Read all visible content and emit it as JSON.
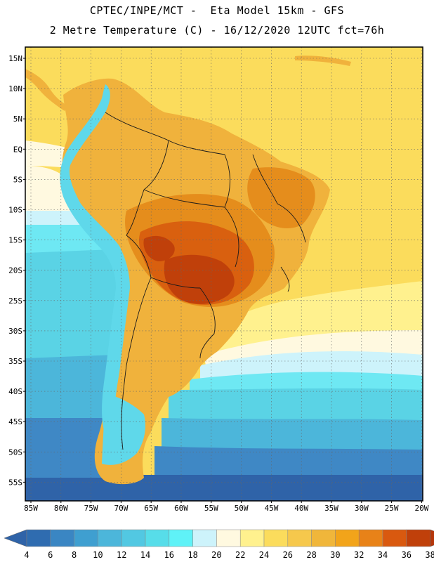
{
  "header": {
    "line1": "CPTEC/INPE/MCT -  Eta Model 15km - GFS",
    "line2": "2 Metre Temperature (C) - 16/12/2020 12UTC fct=76h"
  },
  "lat_labels": [
    "15N",
    "10N",
    "5N",
    "EQ",
    "5S",
    "10S",
    "15S",
    "20S",
    "25S",
    "30S",
    "35S",
    "40S",
    "45S",
    "50S",
    "55S"
  ],
  "lon_labels": [
    "85W",
    "80W",
    "75W",
    "70W",
    "65W",
    "60W",
    "55W",
    "50W",
    "45W",
    "40W",
    "35W",
    "30W",
    "25W",
    "20W"
  ],
  "colorbar": {
    "ticks": [
      "4",
      "6",
      "8",
      "10",
      "12",
      "14",
      "16",
      "18",
      "20",
      "22",
      "24",
      "26",
      "28",
      "30",
      "32",
      "34",
      "36",
      "38"
    ],
    "colors": [
      "#2f6cb0",
      "#3a86c3",
      "#3f9fd0",
      "#4cb6da",
      "#52c8e2",
      "#57dde9",
      "#5ff2f7",
      "#cdf3fb",
      "#fff9e0",
      "#fff18e",
      "#fbdc5c",
      "#f6c84c",
      "#f0b63a",
      "#f2a41a",
      "#e88218",
      "#d9590f",
      "#c0400a"
    ],
    "low_color": "#2f63a8",
    "high_color": "#b5360a"
  },
  "map_colors": {
    "ocean_cold": "#2f63a8",
    "ocean_cool": "#3f88c5",
    "ocean_mid": "#4cb6da",
    "ocean_teal": "#5ad3e5",
    "ocean_cyan": "#6ee8f3",
    "ocean_pale": "#cdf3fb",
    "ocean_cream": "#fff9e0",
    "ocean_yellow": "#fff18e",
    "ocean_warm": "#fbdc5c",
    "land_base": "#f0b23c",
    "land_hot": "#e58d1c",
    "land_hotter": "#d9600f",
    "land_hottest": "#c0400a",
    "andes": "#5fd8ea",
    "border": "#1a1a1a",
    "grid": "#666666"
  }
}
